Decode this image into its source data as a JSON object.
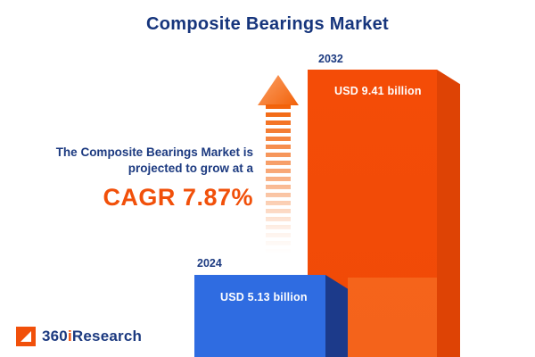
{
  "title": "Composite Bearings Market",
  "growth": {
    "line1": "The Composite Bearings Market is",
    "line2": "projected to grow at a",
    "cagr": "CAGR 7.87%"
  },
  "bars": {
    "b2024": {
      "year": "2024",
      "label": "USD 5.13 billion"
    },
    "b2032": {
      "year": "2032",
      "label": "USD 9.41 billion"
    }
  },
  "logo": {
    "part1": "360",
    "part2": "i",
    "part3": "Research"
  },
  "colors": {
    "navy": "#1c3a80",
    "orange": "#f1500a",
    "bar_blue_front": "#2f6ce1",
    "bar_blue_side": "#1c3a8a",
    "bar_orange_front": "#f24b07",
    "bar_orange_side": "#de4305"
  },
  "chart_data": {
    "type": "bar",
    "title": "Composite Bearings Market",
    "categories": [
      "2024",
      "2032"
    ],
    "values": [
      5.13,
      9.41
    ],
    "unit": "USD billion",
    "value_labels": [
      "USD 5.13 billion",
      "USD 9.41 billion"
    ],
    "bar_colors": [
      "#2f6ce1",
      "#f1500a"
    ],
    "annotation": "The Composite Bearings Market is projected to grow at a CAGR 7.87%",
    "cagr_percent": 7.87,
    "xlabel": "",
    "ylabel": "",
    "legend": "none",
    "gridlines": false
  }
}
